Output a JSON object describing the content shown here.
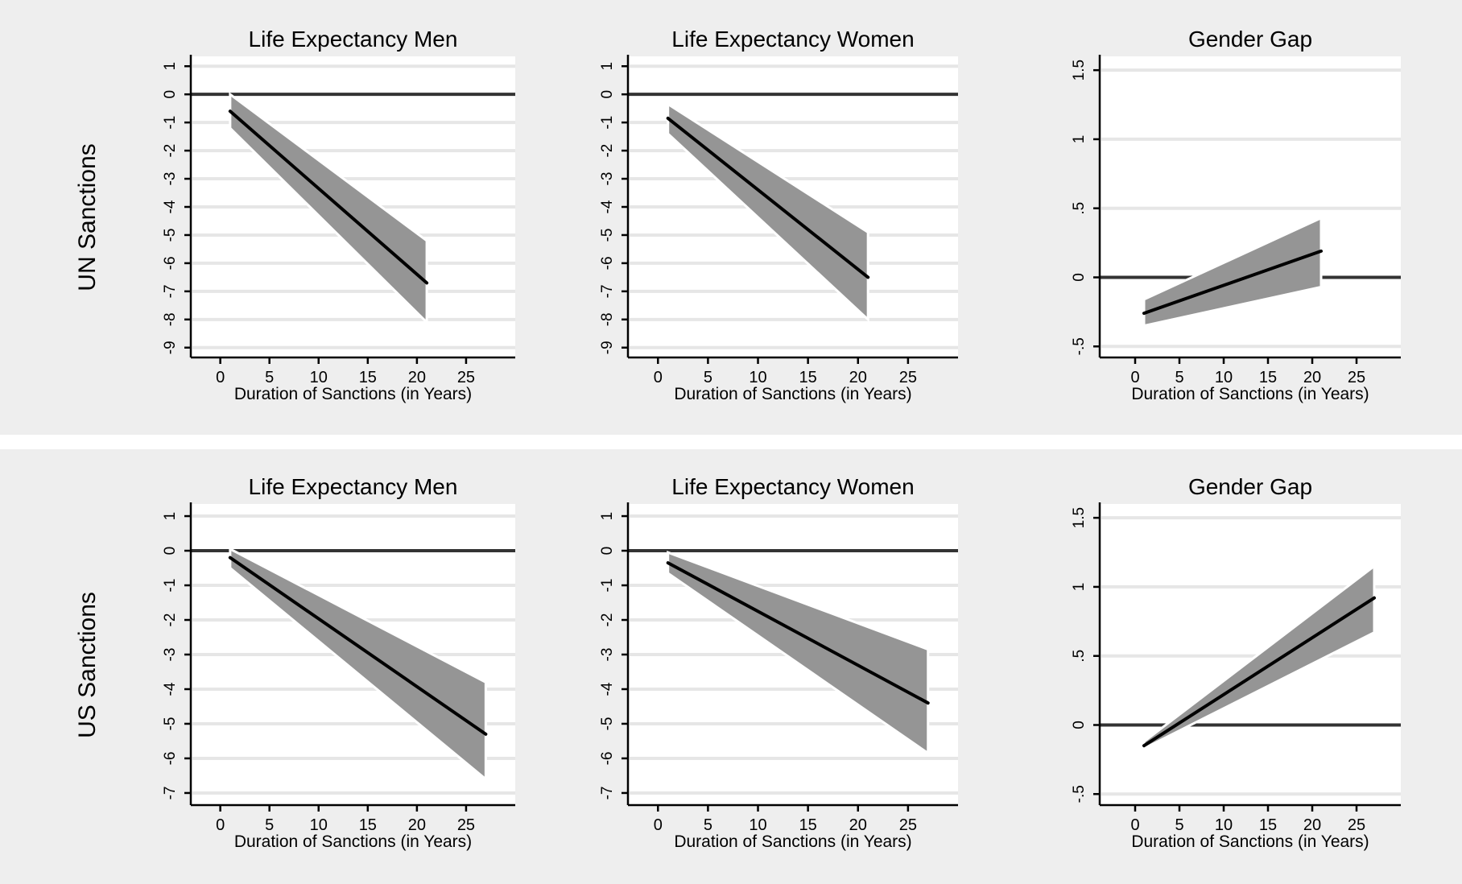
{
  "rows": [
    {
      "label": "UN Sanctions"
    },
    {
      "label": "US Sanctions"
    }
  ],
  "colors": {
    "row_background": "#eeeeee",
    "plot_background": "#ffffff",
    "gridline": "#e6e6e6",
    "band": "#959595",
    "line": "#000000",
    "zero_line": "#333333"
  },
  "chart_data": [
    {
      "type": "line",
      "row": 0,
      "col": 0,
      "title": "Life Expectancy Men",
      "xlabel": "Duration of Sanctions (in Years)",
      "ylabel": "",
      "xlim": [
        -3,
        30
      ],
      "ylim": [
        -9.35,
        1.35
      ],
      "xticks": [
        0,
        5,
        10,
        15,
        20,
        25
      ],
      "xtick_labels": [
        "0",
        "5",
        "10",
        "15",
        "20",
        "25"
      ],
      "yticks": [
        1,
        0,
        -1,
        -2,
        -3,
        -4,
        -5,
        -6,
        -7,
        -8,
        -9
      ],
      "ytick_labels": [
        "1",
        "0",
        "-1",
        "-2",
        "-3",
        "-4",
        "-5",
        "-6",
        "-7",
        "-8",
        "-9"
      ],
      "grid": true,
      "reference_line": 0,
      "series": [
        {
          "x": [
            1,
            21
          ],
          "y": [
            -0.6,
            -6.7
          ],
          "ci_lower": [
            -1.2,
            -8.1
          ],
          "ci_upper": [
            0.0,
            -5.2
          ]
        }
      ]
    },
    {
      "type": "line",
      "row": 0,
      "col": 1,
      "title": "Life Expectancy Women",
      "xlabel": "Duration of Sanctions (in Years)",
      "ylabel": "",
      "xlim": [
        -3,
        30
      ],
      "ylim": [
        -9.35,
        1.35
      ],
      "xticks": [
        0,
        5,
        10,
        15,
        20,
        25
      ],
      "xtick_labels": [
        "0",
        "5",
        "10",
        "15",
        "20",
        "25"
      ],
      "yticks": [
        1,
        0,
        -1,
        -2,
        -3,
        -4,
        -5,
        -6,
        -7,
        -8,
        -9
      ],
      "ytick_labels": [
        "1",
        "0",
        "-1",
        "-2",
        "-3",
        "-4",
        "-5",
        "-6",
        "-7",
        "-8",
        "-9"
      ],
      "grid": true,
      "reference_line": 0,
      "series": [
        {
          "x": [
            1,
            21
          ],
          "y": [
            -0.85,
            -6.5
          ],
          "ci_lower": [
            -1.4,
            -8.0
          ],
          "ci_upper": [
            -0.35,
            -4.9
          ]
        }
      ]
    },
    {
      "type": "line",
      "row": 0,
      "col": 2,
      "title": "Gender Gap",
      "xlabel": "Duration of Sanctions (in Years)",
      "ylabel": "",
      "xlim": [
        -4,
        30
      ],
      "ylim": [
        -0.58,
        1.6
      ],
      "xticks": [
        0,
        5,
        10,
        15,
        20,
        25
      ],
      "xtick_labels": [
        "0",
        "5",
        "10",
        "15",
        "20",
        "25"
      ],
      "yticks": [
        1.5,
        1,
        0.5,
        0,
        -0.5
      ],
      "ytick_labels": [
        "1.5",
        "1",
        ".5",
        "0",
        "-.5"
      ],
      "grid": true,
      "reference_line": 0,
      "series": [
        {
          "x": [
            1,
            21
          ],
          "y": [
            -0.26,
            0.19
          ],
          "ci_lower": [
            -0.35,
            -0.07
          ],
          "ci_upper": [
            -0.16,
            0.43
          ]
        }
      ]
    },
    {
      "type": "line",
      "row": 1,
      "col": 0,
      "title": "Life Expectancy Men",
      "xlabel": "Duration of Sanctions (in Years)",
      "ylabel": "",
      "xlim": [
        -3,
        30
      ],
      "ylim": [
        -7.35,
        1.35
      ],
      "xticks": [
        0,
        5,
        10,
        15,
        20,
        25
      ],
      "xtick_labels": [
        "0",
        "5",
        "10",
        "15",
        "20",
        "25"
      ],
      "yticks": [
        1,
        0,
        -1,
        -2,
        -3,
        -4,
        -5,
        -6,
        -7
      ],
      "ytick_labels": [
        "1",
        "0",
        "-1",
        "-2",
        "-3",
        "-4",
        "-5",
        "-6",
        "-7"
      ],
      "grid": true,
      "reference_line": 0,
      "series": [
        {
          "x": [
            1,
            27
          ],
          "y": [
            -0.2,
            -5.3
          ],
          "ci_lower": [
            -0.5,
            -6.6
          ],
          "ci_upper": [
            0.05,
            -3.8
          ]
        }
      ]
    },
    {
      "type": "line",
      "row": 1,
      "col": 1,
      "title": "Life Expectancy Women",
      "xlabel": "Duration of Sanctions (in Years)",
      "ylabel": "",
      "xlim": [
        -3,
        30
      ],
      "ylim": [
        -7.35,
        1.35
      ],
      "xticks": [
        0,
        5,
        10,
        15,
        20,
        25
      ],
      "xtick_labels": [
        "0",
        "5",
        "10",
        "15",
        "20",
        "25"
      ],
      "yticks": [
        1,
        0,
        -1,
        -2,
        -3,
        -4,
        -5,
        -6,
        -7
      ],
      "ytick_labels": [
        "1",
        "0",
        "-1",
        "-2",
        "-3",
        "-4",
        "-5",
        "-6",
        "-7"
      ],
      "grid": true,
      "reference_line": 0,
      "series": [
        {
          "x": [
            1,
            27
          ],
          "y": [
            -0.35,
            -4.4
          ],
          "ci_lower": [
            -0.65,
            -5.85
          ],
          "ci_upper": [
            -0.05,
            -2.85
          ]
        }
      ]
    },
    {
      "type": "line",
      "row": 1,
      "col": 2,
      "title": "Gender Gap",
      "xlabel": "Duration of Sanctions (in Years)",
      "ylabel": "",
      "xlim": [
        -4,
        30
      ],
      "ylim": [
        -0.58,
        1.6
      ],
      "xticks": [
        0,
        5,
        10,
        15,
        20,
        25
      ],
      "xtick_labels": [
        "0",
        "5",
        "10",
        "15",
        "20",
        "25"
      ],
      "yticks": [
        1.5,
        1,
        0.5,
        0,
        -0.5
      ],
      "ytick_labels": [
        "1.5",
        "1",
        ".5",
        "0",
        "-.5"
      ],
      "grid": true,
      "reference_line": 0,
      "series": [
        {
          "x": [
            1,
            27
          ],
          "y": [
            -0.15,
            0.92
          ],
          "ci_lower": [
            -0.17,
            0.67
          ],
          "ci_upper": [
            -0.12,
            1.15
          ]
        }
      ]
    }
  ]
}
